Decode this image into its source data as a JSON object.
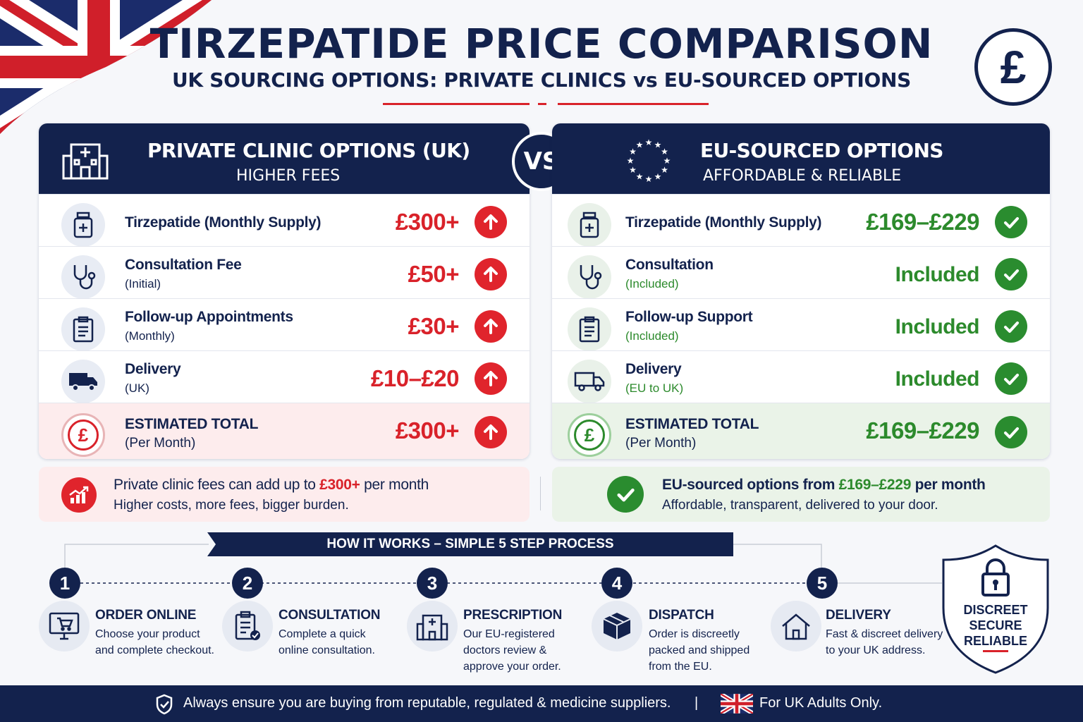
{
  "header": {
    "title": "TIRZEPATIDE PRICE COMPARISON",
    "subtitle": "UK SOURCING OPTIONS: PRIVATE CLINICS vs EU-SOURCED OPTIONS",
    "currency_symbol": "£",
    "vs_label": "VS"
  },
  "left_panel": {
    "title": "PRIVATE CLINIC OPTIONS (UK)",
    "subtitle": "HIGHER FEES",
    "rows": [
      {
        "label": "Tirzepatide (Monthly Supply)",
        "sub": "",
        "price": "£300+"
      },
      {
        "label": "Consultation Fee",
        "sub": "(Initial)",
        "price": "£50+"
      },
      {
        "label": "Follow-up Appointments",
        "sub": "(Monthly)",
        "price": "£30+"
      },
      {
        "label": "Delivery",
        "sub": "(UK)",
        "price": "£10–£20"
      }
    ],
    "total": {
      "label": "ESTIMATED TOTAL",
      "sub": "(Per Month)",
      "price": "£300+"
    },
    "note": {
      "text_a": "Private clinic fees can add up to ",
      "highlight": "£300+",
      "text_b": " per month",
      "sub": "Higher costs, more fees, bigger burden."
    }
  },
  "right_panel": {
    "title": "EU-SOURCED OPTIONS",
    "subtitle": "AFFORDABLE & RELIABLE",
    "rows": [
      {
        "label": "Tirzepatide (Monthly Supply)",
        "sub": "",
        "price": "£169–£229"
      },
      {
        "label": "Consultation",
        "sub": "(Included)",
        "price": "Included"
      },
      {
        "label": "Follow-up Support",
        "sub": "(Included)",
        "price": "Included"
      },
      {
        "label": "Delivery",
        "sub": "(EU to UK)",
        "price": "Included"
      }
    ],
    "total": {
      "label": "ESTIMATED TOTAL",
      "sub": "(Per Month)",
      "price": "£169–£229"
    },
    "note": {
      "text_a": "EU-sourced options from ",
      "highlight": "£169–£229",
      "text_b": " per month",
      "sub": "Affordable, transparent, delivered to your door."
    }
  },
  "process": {
    "title": "HOW IT WORKS – SIMPLE 5 STEP PROCESS",
    "steps": [
      {
        "num": "1",
        "title": "ORDER ONLINE",
        "desc": [
          "Choose your product",
          "and complete checkout."
        ],
        "icon": "cart-monitor-icon"
      },
      {
        "num": "2",
        "title": "CONSULTATION",
        "desc": [
          "Complete a quick",
          "online consultation."
        ],
        "icon": "clipboard-check-icon"
      },
      {
        "num": "3",
        "title": "PRESCRIPTION",
        "desc": [
          "Our EU-registered",
          "doctors review &",
          "approve your order."
        ],
        "icon": "hospital-icon"
      },
      {
        "num": "4",
        "title": "DISPATCH",
        "desc": [
          "Order is discreetly",
          "packed and shipped",
          "from the EU."
        ],
        "icon": "package-icon"
      },
      {
        "num": "5",
        "title": "DELIVERY",
        "desc": [
          "Fast & discreet delivery",
          "to your UK address."
        ],
        "icon": "house-icon"
      }
    ],
    "shield": [
      "DISCREET",
      "SECURE",
      "RELIABLE"
    ]
  },
  "footer": {
    "left": "Always ensure you are buying from reputable, regulated & medicine suppliers.",
    "separator": "|",
    "right": "For UK Adults Only."
  },
  "colors": {
    "navy": "#13224d",
    "red": "#d9222a",
    "green": "#2c8a2c"
  }
}
